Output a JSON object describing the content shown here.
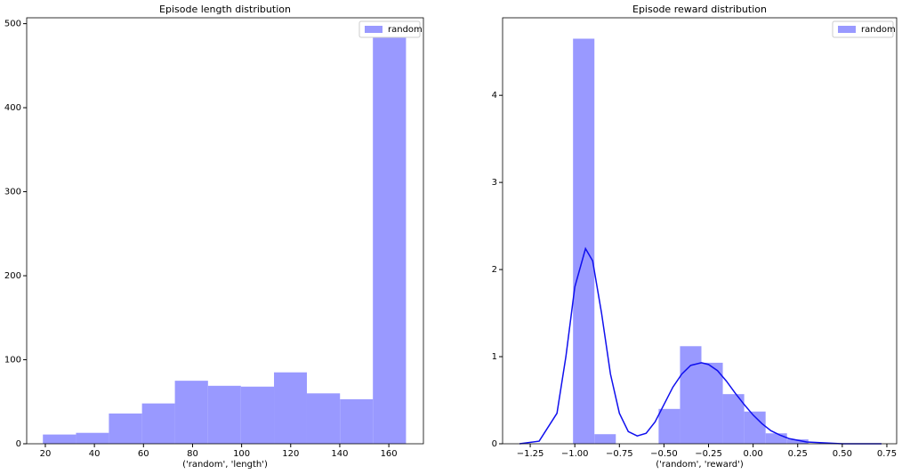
{
  "chart_data": [
    {
      "type": "histogram",
      "title": "Episode length distribution",
      "xlabel": "('random', 'length')",
      "name": "random",
      "color": "#9999ff",
      "legend": "upper right",
      "bins": [
        19,
        32.5,
        45.9,
        59.4,
        72.8,
        86.3,
        99.7,
        113.2,
        126.6,
        140.1,
        153.5,
        167
      ],
      "counts": [
        11,
        13,
        36,
        48,
        75,
        69,
        68,
        85,
        60,
        53,
        484
      ],
      "xlim": [
        12.4,
        174.1
      ],
      "ylim": [
        0,
        507
      ],
      "xticks": [
        20,
        40,
        60,
        80,
        100,
        120,
        140,
        160
      ],
      "yticks": [
        0,
        100,
        200,
        300,
        400,
        500
      ]
    },
    {
      "type": "histogram",
      "title": "Episode reward distribution",
      "xlabel": "('random', 'reward')",
      "name": "random",
      "color": "#9999ff",
      "legend": "upper right",
      "bins": [
        -1.01,
        -0.89,
        -0.77,
        -0.65,
        -0.53,
        -0.41,
        -0.29,
        -0.17,
        -0.05,
        0.07,
        0.19,
        0.31
      ],
      "counts": [
        4.65,
        0.11,
        0,
        0,
        0.4,
        1.12,
        0.93,
        0.57,
        0.37,
        0.12,
        0.05
      ],
      "kde": {
        "color": "#1010ee",
        "x": [
          -1.31,
          -1.2,
          -1.1,
          -1.05,
          -1.0,
          -0.94,
          -0.9,
          -0.85,
          -0.8,
          -0.75,
          -0.7,
          -0.65,
          -0.6,
          -0.55,
          -0.5,
          -0.45,
          -0.4,
          -0.35,
          -0.29,
          -0.25,
          -0.2,
          -0.15,
          -0.1,
          -0.05,
          0,
          0.05,
          0.1,
          0.15,
          0.2,
          0.3,
          0.4,
          0.5,
          0.72
        ],
        "y": [
          0,
          0.03,
          0.35,
          1.0,
          1.8,
          2.24,
          2.1,
          1.5,
          0.8,
          0.35,
          0.14,
          0.09,
          0.12,
          0.25,
          0.45,
          0.65,
          0.8,
          0.9,
          0.93,
          0.91,
          0.84,
          0.72,
          0.58,
          0.45,
          0.33,
          0.23,
          0.15,
          0.1,
          0.06,
          0.02,
          0.01,
          0,
          0
        ]
      },
      "xlim": [
        -1.405,
        0.805
      ],
      "ylim": [
        0,
        4.89
      ],
      "xticks": [
        {
          "value": -1.25,
          "label": "−1.25"
        },
        {
          "value": -1.0,
          "label": "−1.00"
        },
        {
          "value": -0.75,
          "label": "−0.75"
        },
        {
          "value": -0.5,
          "label": "−0.50"
        },
        {
          "value": -0.25,
          "label": "−0.25"
        },
        {
          "value": 0,
          "label": "0.00"
        },
        0.25,
        {
          "value": 0.5,
          "label": "0.50"
        },
        0.75
      ],
      "yticks": [
        0,
        1,
        2,
        3,
        4
      ]
    }
  ]
}
